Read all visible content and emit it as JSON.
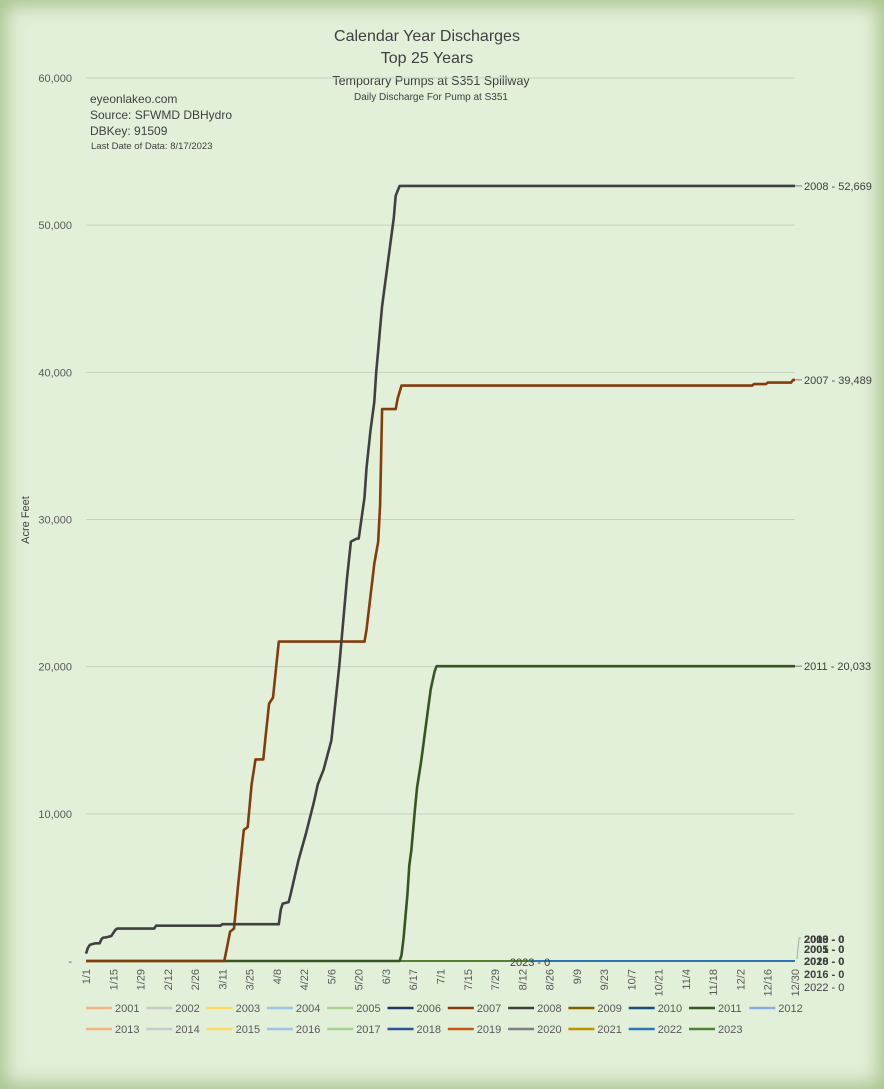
{
  "chart_data": {
    "type": "line",
    "title": "Calendar Year Discharges",
    "subtitle": "Top 25 Years",
    "subtitle2": "Temporary Pumps at S351 Spillway",
    "subtitle3": "Daily Discharge For Pump at S351",
    "info": [
      "eyeonlakeo.com",
      "Source: SFWMD DBHydro",
      "DBKey: 91509"
    ],
    "last_date": "Last Date of Data: 8/17/2023",
    "ylabel": "Acre Feet",
    "ylim": [
      0,
      60000
    ],
    "yticks": [
      0,
      10000,
      20000,
      30000,
      40000,
      50000,
      60000
    ],
    "ytick_labels": [
      "-",
      "10,000",
      "20,000",
      "30,000",
      "40,000",
      "50,000",
      "60,000"
    ],
    "xlim": [
      1,
      365
    ],
    "x_unit": "day of year",
    "x_ticks": [
      1,
      15,
      29,
      43,
      57,
      71,
      85,
      99,
      113,
      127,
      141,
      155,
      169,
      183,
      197,
      211,
      225,
      239,
      253,
      267,
      281,
      295,
      309,
      323,
      337,
      351,
      365
    ],
    "x_tick_labels": [
      "1/1",
      "1/15",
      "1/29",
      "2/12",
      "2/26",
      "3/11",
      "3/25",
      "4/8",
      "4/22",
      "5/6",
      "5/20",
      "6/3",
      "6/17",
      "7/1",
      "7/15",
      "7/29",
      "8/12",
      "8/26",
      "9/9",
      "9/23",
      "10/7",
      "10/21",
      "11/4",
      "11/18",
      "12/2",
      "12/16",
      "12/30"
    ],
    "grid": true,
    "legend_position": "bottom",
    "series": [
      {
        "name": "2001",
        "color": "#f4b183",
        "x": [
          1,
          365
        ],
        "y": [
          0,
          0
        ]
      },
      {
        "name": "2002",
        "color": "#c9c9c9",
        "x": [
          1,
          365
        ],
        "y": [
          0,
          0
        ]
      },
      {
        "name": "2003",
        "color": "#ffd966",
        "x": [
          1,
          365
        ],
        "y": [
          0,
          0
        ]
      },
      {
        "name": "2004",
        "color": "#9dc3e6",
        "x": [
          1,
          365
        ],
        "y": [
          0,
          0
        ]
      },
      {
        "name": "2005",
        "color": "#a9d18e",
        "x": [
          1,
          365
        ],
        "y": [
          0,
          0
        ]
      },
      {
        "name": "2006",
        "color": "#1f3864",
        "x": [
          1,
          365
        ],
        "y": [
          0,
          0
        ]
      },
      {
        "name": "2007",
        "color": "#843c0c",
        "x": [
          1,
          72,
          75,
          77,
          79,
          82,
          84,
          86,
          88,
          92,
          93,
          95,
          97,
          100,
          101,
          104,
          105,
          144,
          145,
          149,
          151,
          152,
          153,
          160,
          161,
          163,
          174,
          343,
          344,
          350,
          351,
          363,
          364,
          365
        ],
        "y": [
          0,
          0,
          2000,
          2200,
          5000,
          8900,
          9100,
          12000,
          13700,
          13700,
          15000,
          17500,
          17900,
          21700,
          21700,
          21700,
          21700,
          21700,
          22500,
          27000,
          28500,
          31000,
          37500,
          37500,
          38200,
          39100,
          39100,
          39100,
          39200,
          39200,
          39300,
          39300,
          39489,
          39489
        ]
      },
      {
        "name": "2008",
        "color": "#404040",
        "x": [
          1,
          2,
          3,
          6,
          8,
          9,
          10,
          11,
          14,
          16,
          17,
          36,
          37,
          70,
          71,
          100,
          101,
          102,
          105,
          106,
          110,
          114,
          118,
          120,
          123,
          125,
          127,
          129,
          131,
          133,
          135,
          137,
          140,
          141,
          144,
          145,
          147,
          149,
          150,
          151,
          152,
          153,
          155,
          157,
          159,
          160,
          162,
          165,
          167,
          168,
          170,
          175,
          365
        ],
        "y": [
          500,
          900,
          1100,
          1200,
          1200,
          1500,
          1600,
          1600,
          1700,
          2100,
          2200,
          2200,
          2400,
          2400,
          2500,
          2500,
          3500,
          3900,
          4000,
          4500,
          6800,
          8700,
          10800,
          12000,
          13000,
          14000,
          15000,
          17500,
          20000,
          23000,
          26000,
          28500,
          28700,
          28700,
          31500,
          33500,
          36000,
          38000,
          40000,
          41500,
          43000,
          44500,
          46500,
          48500,
          50500,
          52000,
          52669,
          52669,
          52669,
          52669,
          52669,
          52669,
          52669
        ]
      },
      {
        "name": "2009",
        "color": "#7f6000",
        "x": [
          1,
          365
        ],
        "y": [
          0,
          0
        ]
      },
      {
        "name": "2010",
        "color": "#1f4e79",
        "x": [
          1,
          365
        ],
        "y": [
          0,
          0
        ]
      },
      {
        "name": "2011",
        "color": "#375623",
        "x": [
          1,
          162,
          163,
          164,
          166,
          167,
          168,
          170,
          171,
          173,
          174,
          175,
          177,
          178,
          180,
          181,
          365
        ],
        "y": [
          0,
          0,
          400,
          1500,
          4500,
          6500,
          7500,
          10500,
          11800,
          13500,
          14500,
          15500,
          17500,
          18500,
          19700,
          20033,
          20033
        ]
      },
      {
        "name": "2012",
        "color": "#8faadc",
        "x": [
          1,
          365
        ],
        "y": [
          0,
          0
        ]
      },
      {
        "name": "2013",
        "color": "#f4b183",
        "x": [
          1,
          365
        ],
        "y": [
          0,
          0
        ]
      },
      {
        "name": "2014",
        "color": "#c9c9c9",
        "x": [
          1,
          365
        ],
        "y": [
          0,
          0
        ]
      },
      {
        "name": "2015",
        "color": "#ffd966",
        "x": [
          1,
          365
        ],
        "y": [
          0,
          0
        ]
      },
      {
        "name": "2016",
        "color": "#9dc3e6",
        "x": [
          1,
          365
        ],
        "y": [
          0,
          0
        ]
      },
      {
        "name": "2017",
        "color": "#a9d18e",
        "x": [
          1,
          365
        ],
        "y": [
          0,
          0
        ]
      },
      {
        "name": "2018",
        "color": "#2f5597",
        "x": [
          1,
          365
        ],
        "y": [
          0,
          0
        ]
      },
      {
        "name": "2019",
        "color": "#c55a11",
        "x": [
          1,
          365
        ],
        "y": [
          0,
          0
        ]
      },
      {
        "name": "2020",
        "color": "#7f7f7f",
        "x": [
          1,
          365
        ],
        "y": [
          0,
          0
        ]
      },
      {
        "name": "2021",
        "color": "#bf9000",
        "x": [
          1,
          365
        ],
        "y": [
          0,
          0
        ]
      },
      {
        "name": "2022",
        "color": "#2e75b6",
        "x": [
          1,
          365
        ],
        "y": [
          0,
          0
        ]
      },
      {
        "name": "2023",
        "color": "#548235",
        "x": [
          1,
          229
        ],
        "y": [
          0,
          0
        ]
      }
    ],
    "end_labels": {
      "main": [
        {
          "text": "2008 - 52,669",
          "value": 52669
        },
        {
          "text": "2007 - 39,489",
          "value": 39489
        },
        {
          "text": "2011 - 20,033",
          "value": 20033
        }
      ],
      "small": [
        "2009 - 0",
        "2010 - 0",
        "2003 - 0",
        "2001 - 0",
        "2005 - 0",
        "2020 - 0",
        "2018 - 0",
        "2016 - 0",
        "2022 - 0"
      ],
      "inline": "2023 - 0"
    },
    "legend_rows": [
      [
        "2001",
        "2002",
        "2003",
        "2004",
        "2005",
        "2006",
        "2007",
        "2008",
        "2009",
        "2010",
        "2011",
        "2012"
      ],
      [
        "2013",
        "2014",
        "2015",
        "2016",
        "2017",
        "2018",
        "2019",
        "2020",
        "2021",
        "2022",
        "2023"
      ]
    ]
  }
}
